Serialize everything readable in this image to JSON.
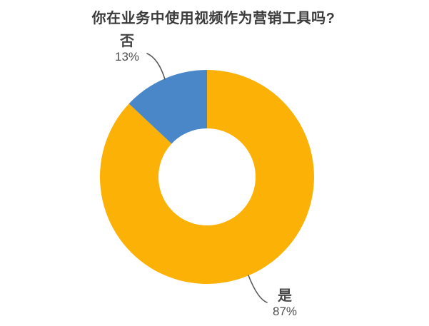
{
  "chart_data": {
    "type": "pie",
    "subtype": "donut",
    "title": "你在业务中使用视频作为营销工具吗?",
    "categories": [
      "是",
      "否"
    ],
    "values": [
      87,
      13
    ],
    "unit": "%",
    "start_angle": "12-oclock",
    "direction": "clockwise",
    "hole_ratio": 0.45,
    "legend_position": "none",
    "gridlines": false,
    "slices": [
      {
        "key": "yes",
        "label": "是",
        "value": 87,
        "value_text": "87%",
        "color": "#FBB106"
      },
      {
        "key": "no",
        "label": "否",
        "value": 13,
        "value_text": "13%",
        "color": "#4A87C8"
      }
    ],
    "colors": {
      "title_text": "#3B3B3B",
      "category_text": "#474747",
      "percent_text": "#4F4F4F",
      "leader_line": "#5A5A5A",
      "background": "#FFFFFF"
    }
  }
}
